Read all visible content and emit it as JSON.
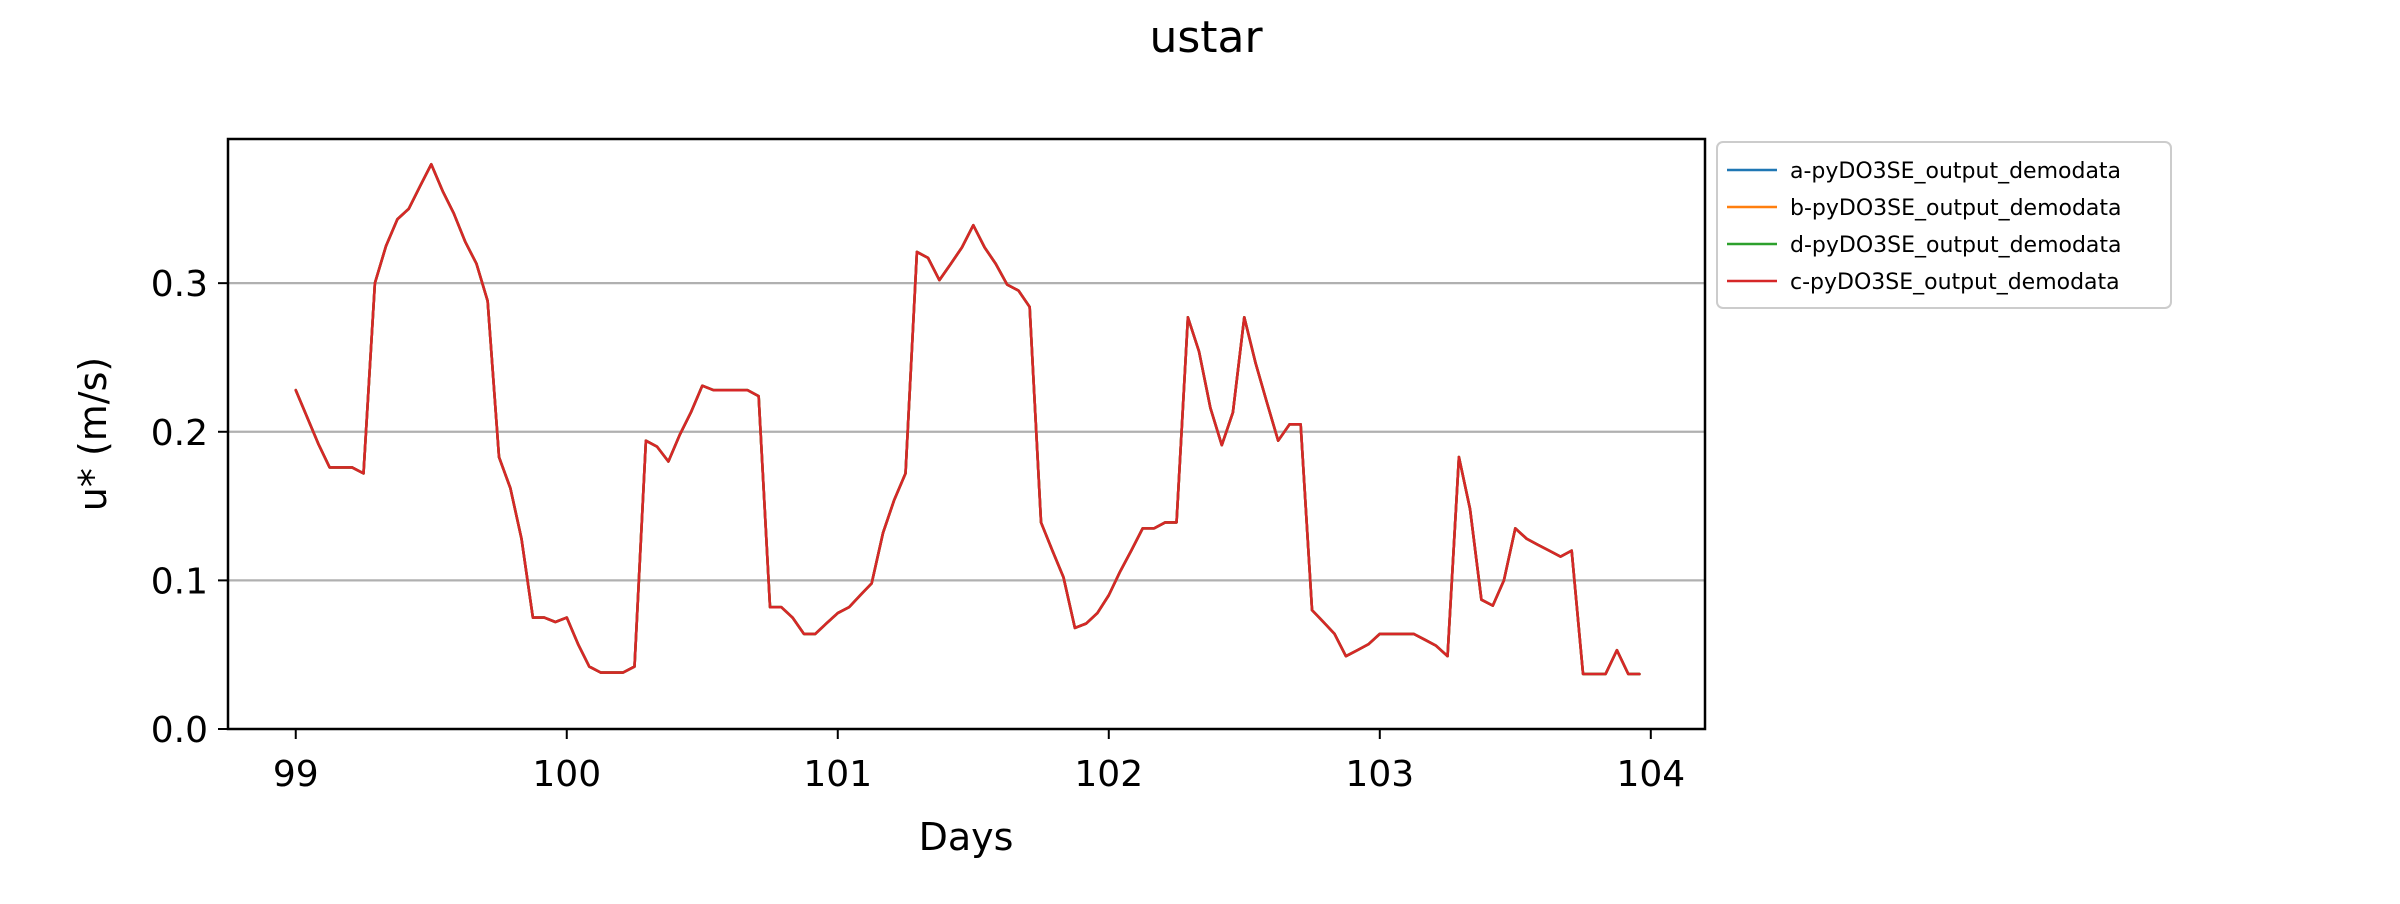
{
  "chart_data": {
    "type": "line",
    "title": "ustar",
    "xlabel": "Days",
    "ylabel": "u* (m/s)",
    "xlim": [
      98.75,
      104.2
    ],
    "ylim": [
      0.0,
      0.397
    ],
    "xticks": [
      99,
      100,
      101,
      102,
      103,
      104
    ],
    "xtick_labels": [
      "99",
      "100",
      "101",
      "102",
      "103",
      "104"
    ],
    "yticks": [
      0.0,
      0.1,
      0.2,
      0.3
    ],
    "ytick_labels": [
      "0.0",
      "0.1",
      "0.2",
      "0.3"
    ],
    "grid": "horizontal",
    "legend_position": "outside-upper-right",
    "x": [
      99.0,
      99.083,
      99.125,
      99.167,
      99.208,
      99.25,
      99.292,
      99.333,
      99.375,
      99.417,
      99.458,
      99.5,
      99.542,
      99.583,
      99.625,
      99.667,
      99.708,
      99.75,
      99.792,
      99.833,
      99.875,
      99.917,
      99.958,
      100.0,
      100.042,
      100.083,
      100.125,
      100.167,
      100.208,
      100.25,
      100.292,
      100.333,
      100.375,
      100.417,
      100.458,
      100.5,
      100.542,
      100.583,
      100.625,
      100.667,
      100.708,
      100.75,
      100.792,
      100.833,
      100.875,
      100.917,
      100.958,
      101.0,
      101.042,
      101.083,
      101.125,
      101.167,
      101.208,
      101.25,
      101.292,
      101.333,
      101.375,
      101.417,
      101.458,
      101.5,
      101.542,
      101.583,
      101.625,
      101.667,
      101.708,
      101.75,
      101.792,
      101.833,
      101.875,
      101.917,
      101.958,
      102.0,
      102.042,
      102.083,
      102.125,
      102.167,
      102.208,
      102.25,
      102.292,
      102.333,
      102.375,
      102.417,
      102.458,
      102.5,
      102.542,
      102.583,
      102.625,
      102.667,
      102.708,
      102.75,
      102.792,
      102.833,
      102.875,
      102.917,
      102.958,
      103.0,
      103.042,
      103.083,
      103.125,
      103.167,
      103.208,
      103.25,
      103.292,
      103.333,
      103.375,
      103.417,
      103.458,
      103.5,
      103.542,
      103.583,
      103.625,
      103.667,
      103.708,
      103.75,
      103.792,
      103.833,
      103.875,
      103.917,
      103.958
    ],
    "series": [
      {
        "name": "a-pyDO3SE_output_demodata",
        "color": "#1f77b4",
        "values": [
          0.228,
          0.192,
          0.176,
          0.176,
          0.176,
          0.172,
          0.3,
          0.325,
          0.343,
          0.35,
          0.365,
          0.38,
          0.362,
          0.347,
          0.328,
          0.313,
          0.288,
          0.183,
          0.162,
          0.128,
          0.075,
          0.075,
          0.072,
          0.075,
          0.057,
          0.042,
          0.038,
          0.038,
          0.038,
          0.042,
          0.194,
          0.19,
          0.18,
          0.198,
          0.213,
          0.231,
          0.228,
          0.228,
          0.228,
          0.228,
          0.224,
          0.082,
          0.082,
          0.075,
          0.064,
          0.064,
          0.071,
          0.078,
          0.082,
          0.09,
          0.098,
          0.132,
          0.154,
          0.172,
          0.321,
          0.317,
          0.302,
          0.313,
          0.324,
          0.339,
          0.324,
          0.313,
          0.299,
          0.295,
          0.284,
          0.139,
          0.12,
          0.102,
          0.068,
          0.071,
          0.078,
          0.09,
          0.106,
          0.12,
          0.135,
          0.135,
          0.139,
          0.139,
          0.277,
          0.254,
          0.216,
          0.191,
          0.213,
          0.277,
          0.246,
          0.22,
          0.194,
          0.205,
          0.205,
          0.08,
          0.072,
          0.064,
          0.049,
          0.053,
          0.057,
          0.064,
          0.064,
          0.064,
          0.064,
          0.06,
          0.056,
          0.049,
          0.183,
          0.148,
          0.087,
          0.083,
          0.1,
          0.135,
          0.128,
          0.124,
          0.12,
          0.116,
          0.12,
          0.037,
          0.037,
          0.037,
          0.053,
          0.037,
          0.037
        ]
      },
      {
        "name": "b-pyDO3SE_output_demodata",
        "color": "#ff7f0e",
        "values": [
          0.228,
          0.192,
          0.176,
          0.176,
          0.176,
          0.172,
          0.3,
          0.325,
          0.343,
          0.35,
          0.365,
          0.38,
          0.362,
          0.347,
          0.328,
          0.313,
          0.288,
          0.183,
          0.162,
          0.128,
          0.075,
          0.075,
          0.072,
          0.075,
          0.057,
          0.042,
          0.038,
          0.038,
          0.038,
          0.042,
          0.194,
          0.19,
          0.18,
          0.198,
          0.213,
          0.231,
          0.228,
          0.228,
          0.228,
          0.228,
          0.224,
          0.082,
          0.082,
          0.075,
          0.064,
          0.064,
          0.071,
          0.078,
          0.082,
          0.09,
          0.098,
          0.132,
          0.154,
          0.172,
          0.321,
          0.317,
          0.302,
          0.313,
          0.324,
          0.339,
          0.324,
          0.313,
          0.299,
          0.295,
          0.284,
          0.139,
          0.12,
          0.102,
          0.068,
          0.071,
          0.078,
          0.09,
          0.106,
          0.12,
          0.135,
          0.135,
          0.139,
          0.139,
          0.277,
          0.254,
          0.216,
          0.191,
          0.213,
          0.277,
          0.246,
          0.22,
          0.194,
          0.205,
          0.205,
          0.08,
          0.072,
          0.064,
          0.049,
          0.053,
          0.057,
          0.064,
          0.064,
          0.064,
          0.064,
          0.06,
          0.056,
          0.049,
          0.183,
          0.148,
          0.087,
          0.083,
          0.1,
          0.135,
          0.128,
          0.124,
          0.12,
          0.116,
          0.12,
          0.037,
          0.037,
          0.037,
          0.053,
          0.037,
          0.037
        ]
      },
      {
        "name": "d-pyDO3SE_output_demodata",
        "color": "#2ca02c",
        "values": [
          0.228,
          0.192,
          0.176,
          0.176,
          0.176,
          0.172,
          0.3,
          0.325,
          0.343,
          0.35,
          0.365,
          0.38,
          0.362,
          0.347,
          0.328,
          0.313,
          0.288,
          0.183,
          0.162,
          0.128,
          0.075,
          0.075,
          0.072,
          0.075,
          0.057,
          0.042,
          0.038,
          0.038,
          0.038,
          0.042,
          0.194,
          0.19,
          0.18,
          0.198,
          0.213,
          0.231,
          0.228,
          0.228,
          0.228,
          0.228,
          0.224,
          0.082,
          0.082,
          0.075,
          0.064,
          0.064,
          0.071,
          0.078,
          0.082,
          0.09,
          0.098,
          0.132,
          0.154,
          0.172,
          0.321,
          0.317,
          0.302,
          0.313,
          0.324,
          0.339,
          0.324,
          0.313,
          0.299,
          0.295,
          0.284,
          0.139,
          0.12,
          0.102,
          0.068,
          0.071,
          0.078,
          0.09,
          0.106,
          0.12,
          0.135,
          0.135,
          0.139,
          0.139,
          0.277,
          0.254,
          0.216,
          0.191,
          0.213,
          0.277,
          0.246,
          0.22,
          0.194,
          0.205,
          0.205,
          0.08,
          0.072,
          0.064,
          0.049,
          0.053,
          0.057,
          0.064,
          0.064,
          0.064,
          0.064,
          0.06,
          0.056,
          0.049,
          0.183,
          0.148,
          0.087,
          0.083,
          0.1,
          0.135,
          0.128,
          0.124,
          0.12,
          0.116,
          0.12,
          0.037,
          0.037,
          0.037,
          0.053,
          0.037,
          0.037
        ]
      },
      {
        "name": "c-pyDO3SE_output_demodata",
        "color": "#d62728",
        "values": [
          0.228,
          0.192,
          0.176,
          0.176,
          0.176,
          0.172,
          0.3,
          0.325,
          0.343,
          0.35,
          0.365,
          0.38,
          0.362,
          0.347,
          0.328,
          0.313,
          0.288,
          0.183,
          0.162,
          0.128,
          0.075,
          0.075,
          0.072,
          0.075,
          0.057,
          0.042,
          0.038,
          0.038,
          0.038,
          0.042,
          0.194,
          0.19,
          0.18,
          0.198,
          0.213,
          0.231,
          0.228,
          0.228,
          0.228,
          0.228,
          0.224,
          0.082,
          0.082,
          0.075,
          0.064,
          0.064,
          0.071,
          0.078,
          0.082,
          0.09,
          0.098,
          0.132,
          0.154,
          0.172,
          0.321,
          0.317,
          0.302,
          0.313,
          0.324,
          0.339,
          0.324,
          0.313,
          0.299,
          0.295,
          0.284,
          0.139,
          0.12,
          0.102,
          0.068,
          0.071,
          0.078,
          0.09,
          0.106,
          0.12,
          0.135,
          0.135,
          0.139,
          0.139,
          0.277,
          0.254,
          0.216,
          0.191,
          0.213,
          0.277,
          0.246,
          0.22,
          0.194,
          0.205,
          0.205,
          0.08,
          0.072,
          0.064,
          0.049,
          0.053,
          0.057,
          0.064,
          0.064,
          0.064,
          0.064,
          0.06,
          0.056,
          0.049,
          0.183,
          0.148,
          0.087,
          0.083,
          0.1,
          0.135,
          0.128,
          0.124,
          0.12,
          0.116,
          0.12,
          0.037,
          0.037,
          0.037,
          0.053,
          0.037,
          0.037
        ]
      }
    ]
  }
}
